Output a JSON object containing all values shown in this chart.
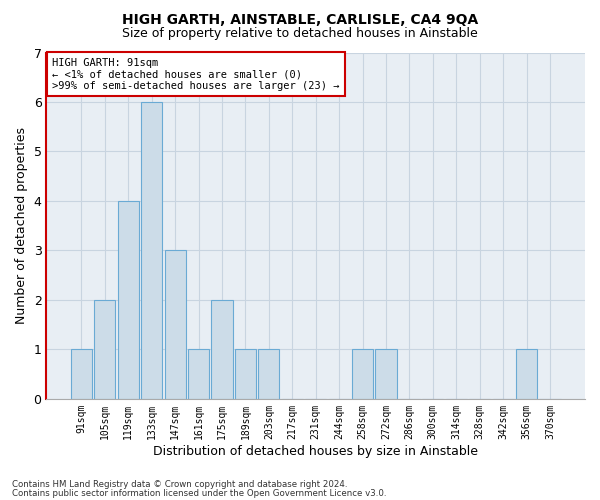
{
  "title": "HIGH GARTH, AINSTABLE, CARLISLE, CA4 9QA",
  "subtitle": "Size of property relative to detached houses in Ainstable",
  "xlabel": "Distribution of detached houses by size in Ainstable",
  "ylabel": "Number of detached properties",
  "bins": [
    "91sqm",
    "105sqm",
    "119sqm",
    "133sqm",
    "147sqm",
    "161sqm",
    "175sqm",
    "189sqm",
    "203sqm",
    "217sqm",
    "231sqm",
    "244sqm",
    "258sqm",
    "272sqm",
    "286sqm",
    "300sqm",
    "314sqm",
    "328sqm",
    "342sqm",
    "356sqm",
    "370sqm"
  ],
  "values": [
    1,
    2,
    4,
    6,
    3,
    1,
    2,
    1,
    1,
    0,
    0,
    0,
    1,
    1,
    0,
    0,
    0,
    0,
    0,
    1,
    0
  ],
  "bar_color": "#ccdce8",
  "bar_edge_color": "#6aaad4",
  "annotation_text_line1": "HIGH GARTH: 91sqm",
  "annotation_text_line2": "← <1% of detached houses are smaller (0)",
  "annotation_text_line3": ">99% of semi-detached houses are larger (23) →",
  "ylim": [
    0,
    7
  ],
  "yticks": [
    0,
    1,
    2,
    3,
    4,
    5,
    6,
    7
  ],
  "grid_color": "#c8d4e0",
  "bg_color": "#e8eef4",
  "spine_red": "#cc0000",
  "title_fontsize": 10,
  "subtitle_fontsize": 9,
  "footnote1": "Contains HM Land Registry data © Crown copyright and database right 2024.",
  "footnote2": "Contains public sector information licensed under the Open Government Licence v3.0."
}
